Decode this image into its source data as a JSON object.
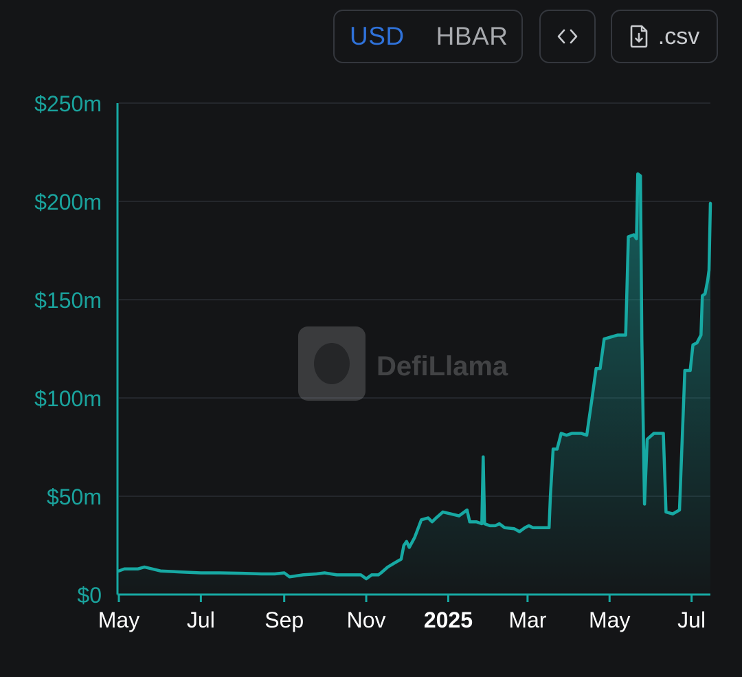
{
  "toolbar": {
    "units": [
      "USD",
      "HBAR"
    ],
    "active_unit": "USD",
    "embed_icon": "code-brackets-icon",
    "csv_icon": "file-download-icon",
    "csv_label": ".csv"
  },
  "watermark": {
    "text": "DefiLlama",
    "icon": "llama-logo"
  },
  "colors": {
    "line": "#17a9a3",
    "axis": "#17a9a3",
    "y_tick_text": "#1aa39d",
    "x_tick_text": "#ffffff",
    "unit_active": "#2f72da",
    "background": "#141517"
  },
  "chart_data": {
    "type": "area",
    "x_unit": "date",
    "y_unit": "USD (millions)",
    "ylim": [
      0,
      250
    ],
    "y_ticks": [
      0,
      50,
      100,
      150,
      200,
      250
    ],
    "y_tick_labels": [
      "$0",
      "$50m",
      "$100m",
      "$150m",
      "$200m",
      "$250m"
    ],
    "x_ticks": [
      {
        "date": "2024-05-01",
        "label": "May",
        "bold": false
      },
      {
        "date": "2024-07-01",
        "label": "Jul",
        "bold": false
      },
      {
        "date": "2024-09-01",
        "label": "Sep",
        "bold": false
      },
      {
        "date": "2024-11-01",
        "label": "Nov",
        "bold": false
      },
      {
        "date": "2025-01-01",
        "label": "2025",
        "bold": true
      },
      {
        "date": "2025-03-01",
        "label": "Mar",
        "bold": false
      },
      {
        "date": "2025-05-01",
        "label": "May",
        "bold": false
      },
      {
        "date": "2025-07-01",
        "label": "Jul",
        "bold": false
      }
    ],
    "grid": true,
    "legend": "none",
    "series": [
      {
        "points": [
          [
            "2024-05-01",
            12
          ],
          [
            "2024-05-05",
            13
          ],
          [
            "2024-05-15",
            13
          ],
          [
            "2024-05-20",
            14
          ],
          [
            "2024-06-01",
            12
          ],
          [
            "2024-06-15",
            11.5
          ],
          [
            "2024-07-01",
            11
          ],
          [
            "2024-07-15",
            11
          ],
          [
            "2024-08-01",
            10.8
          ],
          [
            "2024-08-15",
            10.5
          ],
          [
            "2024-08-25",
            10.5
          ],
          [
            "2024-09-01",
            11
          ],
          [
            "2024-09-05",
            9
          ],
          [
            "2024-09-15",
            10
          ],
          [
            "2024-09-25",
            10.5
          ],
          [
            "2024-10-01",
            11
          ],
          [
            "2024-10-10",
            10
          ],
          [
            "2024-10-20",
            10
          ],
          [
            "2024-10-28",
            10
          ],
          [
            "2024-11-01",
            8
          ],
          [
            "2024-11-05",
            10
          ],
          [
            "2024-11-10",
            10
          ],
          [
            "2024-11-12",
            11
          ],
          [
            "2024-11-17",
            14
          ],
          [
            "2024-11-22",
            16
          ],
          [
            "2024-11-27",
            18
          ],
          [
            "2024-11-29",
            25
          ],
          [
            "2024-12-01",
            27
          ],
          [
            "2024-12-03",
            24
          ],
          [
            "2024-12-07",
            29
          ],
          [
            "2024-12-12",
            38
          ],
          [
            "2024-12-17",
            39
          ],
          [
            "2024-12-20",
            37
          ],
          [
            "2024-12-23",
            39
          ],
          [
            "2024-12-28",
            42
          ],
          [
            "2025-01-03",
            41
          ],
          [
            "2025-01-09",
            40
          ],
          [
            "2025-01-15",
            43
          ],
          [
            "2025-01-17",
            37
          ],
          [
            "2025-01-22",
            37
          ],
          [
            "2025-01-26",
            36
          ],
          [
            "2025-01-27",
            70
          ],
          [
            "2025-01-28",
            36
          ],
          [
            "2025-02-01",
            35
          ],
          [
            "2025-02-05",
            35
          ],
          [
            "2025-02-08",
            36
          ],
          [
            "2025-02-12",
            34
          ],
          [
            "2025-02-19",
            33.5
          ],
          [
            "2025-02-23",
            32
          ],
          [
            "2025-02-27",
            34
          ],
          [
            "2025-03-02",
            35
          ],
          [
            "2025-03-05",
            34
          ],
          [
            "2025-03-12",
            34
          ],
          [
            "2025-03-17",
            34
          ],
          [
            "2025-03-18",
            50
          ],
          [
            "2025-03-20",
            74
          ],
          [
            "2025-03-23",
            74
          ],
          [
            "2025-03-26",
            82
          ],
          [
            "2025-03-30",
            81
          ],
          [
            "2025-04-03",
            82
          ],
          [
            "2025-04-10",
            82
          ],
          [
            "2025-04-14",
            81
          ],
          [
            "2025-04-18",
            100
          ],
          [
            "2025-04-21",
            115
          ],
          [
            "2025-04-24",
            115
          ],
          [
            "2025-04-27",
            130
          ],
          [
            "2025-05-02",
            131
          ],
          [
            "2025-05-07",
            132
          ],
          [
            "2025-05-13",
            132
          ],
          [
            "2025-05-15",
            182
          ],
          [
            "2025-05-19",
            183
          ],
          [
            "2025-05-21",
            181
          ],
          [
            "2025-05-22",
            214
          ],
          [
            "2025-05-24",
            213
          ],
          [
            "2025-05-25",
            130
          ],
          [
            "2025-05-27",
            46
          ],
          [
            "2025-05-29",
            79
          ],
          [
            "2025-06-03",
            82
          ],
          [
            "2025-06-10",
            82
          ],
          [
            "2025-06-12",
            42
          ],
          [
            "2025-06-17",
            41
          ],
          [
            "2025-06-22",
            43
          ],
          [
            "2025-06-26",
            114
          ],
          [
            "2025-06-30",
            114
          ],
          [
            "2025-07-02",
            127
          ],
          [
            "2025-07-05",
            128
          ],
          [
            "2025-07-08",
            132
          ],
          [
            "2025-07-09",
            152
          ],
          [
            "2025-07-11",
            153
          ],
          [
            "2025-07-13",
            160
          ],
          [
            "2025-07-14",
            165
          ],
          [
            "2025-07-15",
            199
          ]
        ]
      }
    ]
  }
}
